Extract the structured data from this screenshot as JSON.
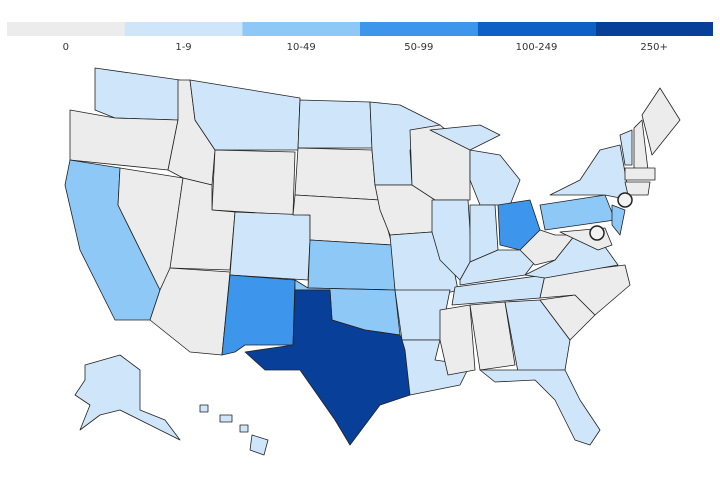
{
  "legend": [
    {
      "label": "0",
      "color": "#ececec"
    },
    {
      "label": "1-9",
      "color": "#cfe6fa"
    },
    {
      "label": "10-49",
      "color": "#8dc8f7"
    },
    {
      "label": "50-99",
      "color": "#3d96ec"
    },
    {
      "label": "100-249",
      "color": "#0f60c4"
    },
    {
      "label": "250+",
      "color": "#083f98"
    }
  ]
}
